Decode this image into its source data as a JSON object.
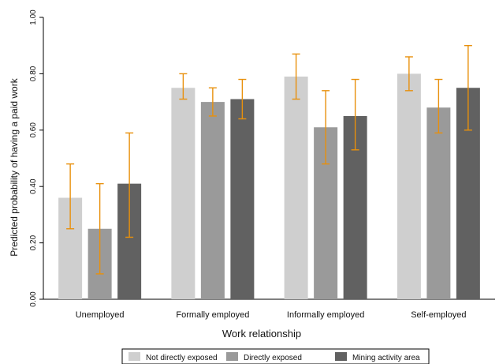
{
  "chart_data": {
    "type": "bar",
    "title": "",
    "xlabel": "Work relationship",
    "ylabel": "Predicted probability of having a paid work",
    "ylim": [
      0,
      1
    ],
    "yticks": [
      0,
      0.2,
      0.4,
      0.6,
      0.8,
      1
    ],
    "ytick_labels": [
      "0.00",
      "0.20",
      "0.40",
      "0.60",
      "0.80",
      "1.00"
    ],
    "grid": false,
    "legend_position": "bottom",
    "categories": [
      "Unemployed",
      "Formally employed",
      "Informally employed",
      "Self-employed"
    ],
    "series": [
      {
        "name": "Not directly exposed",
        "color": "#cfcfcf",
        "values": [
          0.36,
          0.75,
          0.79,
          0.8
        ],
        "ci_low": [
          0.25,
          0.71,
          0.71,
          0.74
        ],
        "ci_high": [
          0.48,
          0.8,
          0.87,
          0.86
        ]
      },
      {
        "name": "Directly exposed",
        "color": "#9a9a9a",
        "values": [
          0.25,
          0.7,
          0.61,
          0.68
        ],
        "ci_low": [
          0.09,
          0.65,
          0.48,
          0.59
        ],
        "ci_high": [
          0.41,
          0.75,
          0.74,
          0.78
        ]
      },
      {
        "name": "Mining activity area",
        "color": "#616161",
        "values": [
          0.41,
          0.71,
          0.65,
          0.75
        ],
        "ci_low": [
          0.22,
          0.64,
          0.53,
          0.6
        ],
        "ci_high": [
          0.59,
          0.78,
          0.78,
          0.9
        ]
      }
    ],
    "error_bar_color": "#e8900c"
  }
}
